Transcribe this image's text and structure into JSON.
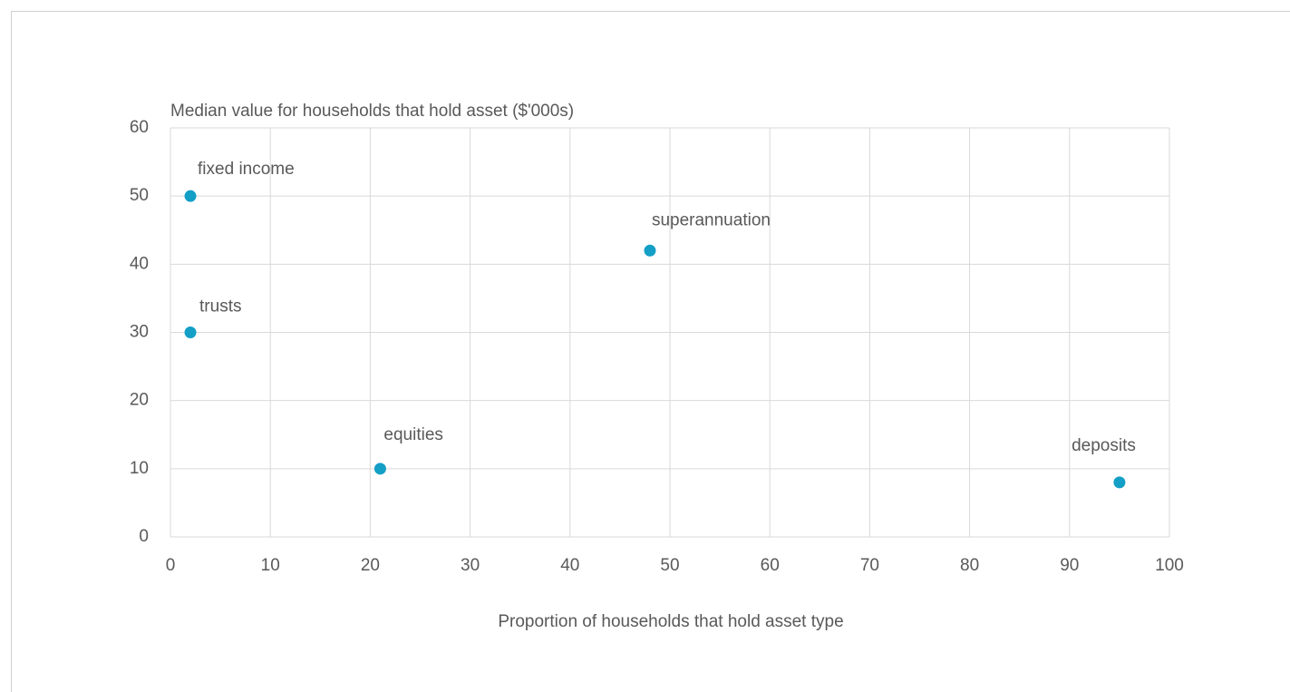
{
  "chart_data": {
    "type": "scatter",
    "title": "Median value for households that hold asset ($'000s)",
    "x_label": "Proportion of households that hold asset type",
    "x": [
      2,
      2,
      21,
      48,
      95
    ],
    "values": [
      50,
      30,
      10,
      42,
      8
    ],
    "point_labels": [
      "fixed income",
      "trusts",
      "equities",
      "superannuation",
      "deposits"
    ],
    "color": "#139fc6",
    "xlim": [
      0,
      100
    ],
    "xticks": [
      0,
      10,
      20,
      30,
      40,
      50,
      60,
      70,
      80,
      90,
      100
    ],
    "ylim": [
      0,
      60
    ],
    "yticks": [
      0,
      10,
      20,
      30,
      40,
      50,
      60
    ],
    "grid": true
  }
}
